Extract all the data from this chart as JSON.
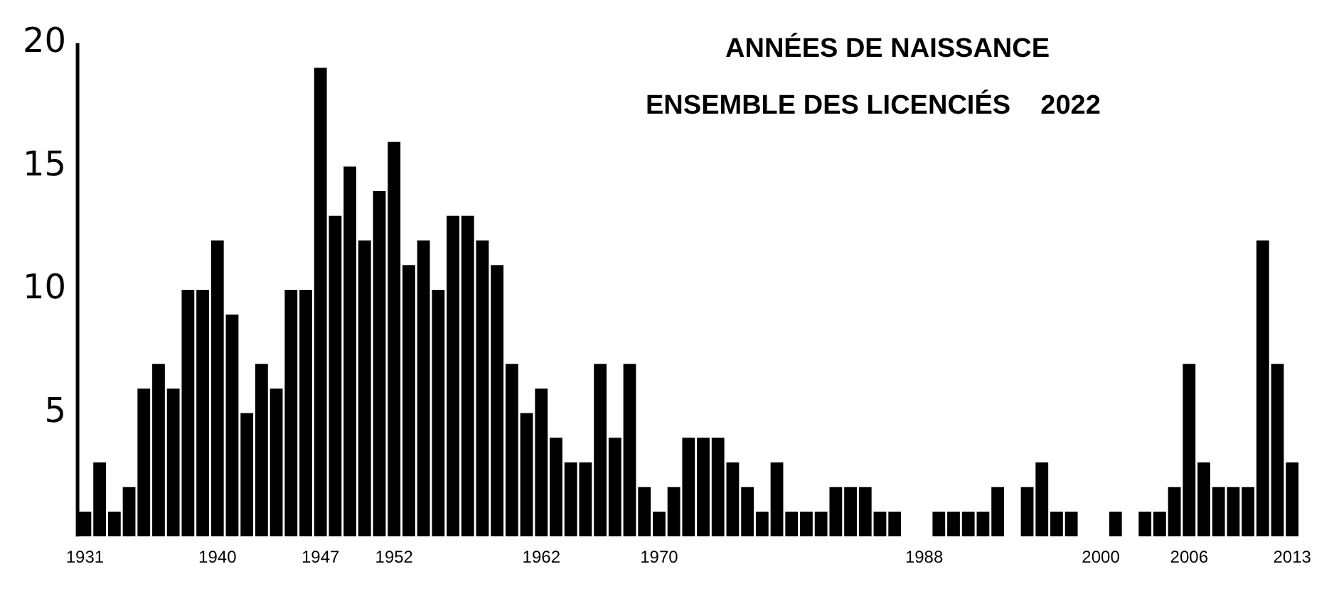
{
  "chart_data": {
    "type": "bar",
    "title": "ANNÉES DE NAISSANCE",
    "subtitle": "ENSEMBLE DES LICENCIÉS    2022",
    "categories": [
      "1931",
      null,
      null,
      null,
      null,
      null,
      null,
      null,
      null,
      "1940",
      null,
      null,
      null,
      null,
      null,
      null,
      "1947",
      null,
      null,
      null,
      null,
      "1952",
      null,
      null,
      null,
      null,
      null,
      null,
      null,
      null,
      null,
      "1962",
      null,
      null,
      null,
      null,
      null,
      null,
      null,
      "1970",
      null,
      null,
      null,
      null,
      null,
      null,
      null,
      null,
      null,
      null,
      null,
      null,
      null,
      null,
      null,
      null,
      null,
      "1988",
      null,
      null,
      null,
      null,
      null,
      null,
      null,
      null,
      null,
      null,
      null,
      "2000",
      null,
      null,
      null,
      null,
      null,
      "2006",
      null,
      null,
      null,
      null,
      null,
      null,
      "2013"
    ],
    "values": [
      1,
      3,
      1,
      2,
      6,
      7,
      6,
      10,
      10,
      12,
      9,
      5,
      7,
      6,
      10,
      10,
      19,
      13,
      15,
      12,
      14,
      16,
      11,
      12,
      10,
      13,
      13,
      12,
      11,
      7,
      5,
      6,
      4,
      3,
      3,
      7,
      4,
      7,
      2,
      1,
      2,
      4,
      4,
      4,
      3,
      2,
      1,
      3,
      1,
      1,
      1,
      2,
      2,
      2,
      1,
      1,
      0,
      0,
      1,
      1,
      1,
      1,
      2,
      0,
      2,
      3,
      1,
      1,
      0,
      0,
      1,
      0,
      1,
      1,
      2,
      7,
      3,
      2,
      2,
      2,
      12,
      7,
      3
    ],
    "color": "#000000",
    "ylim": [
      0,
      20
    ],
    "yticks": [
      5,
      10,
      15,
      20
    ],
    "grid": false,
    "legend": false
  }
}
